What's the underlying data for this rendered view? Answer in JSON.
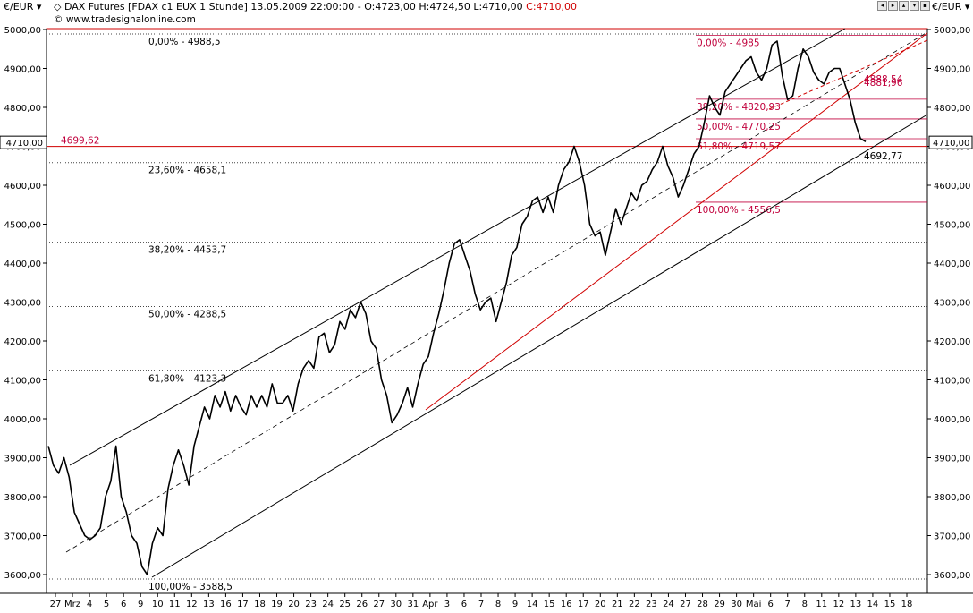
{
  "header": {
    "currency_left": "€/EUR",
    "currency_right": "€/EUR",
    "title": "DAX Futures [FDAX c1 EUX  1 Stunde] 13.05.2009 22:00:00 - O:4723,00 H:4724,50 L:4710,00",
    "close_label": "C:4710,00",
    "site": "www.tradesignalonline.com",
    "controls": [
      "◂",
      "▸",
      "▴",
      "▾",
      "▪"
    ]
  },
  "chart_data": {
    "type": "line",
    "title": "DAX Futures [FDAX c1 EUX  1 Stunde] 13.05.2009 22:00:00",
    "ylim": [
      3560,
      5010
    ],
    "y_ticks": [
      "5000,00",
      "4900,00",
      "4800,00",
      "4700,00",
      "4600,00",
      "4500,00",
      "4400,00",
      "4300,00",
      "4200,00",
      "4100,00",
      "4000,00",
      "3900,00",
      "3800,00",
      "3700,00",
      "3600,00"
    ],
    "x_ticks": [
      "27",
      "Mrz",
      "4",
      "5",
      "6",
      "9",
      "10",
      "11",
      "12",
      "13",
      "16",
      "17",
      "18",
      "19",
      "20",
      "23",
      "24",
      "25",
      "26",
      "27",
      "30",
      "31",
      "Apr",
      "3",
      "6",
      "7",
      "8",
      "9",
      "14",
      "15",
      "16",
      "17",
      "20",
      "21",
      "22",
      "23",
      "24",
      "27",
      "28",
      "29",
      "30",
      "Mai",
      "6",
      "7",
      "8",
      "11",
      "12",
      "13",
      "14",
      "15",
      "18"
    ],
    "last_price_label": "4710,00",
    "hline_label": "4699,62",
    "hline_value": 4699.62,
    "channel_label": "4692,77",
    "fib_left": [
      {
        "label": "0,00% - 4988,5",
        "value": 4988.5
      },
      {
        "label": "23,60% - 4658,1",
        "value": 4658.1
      },
      {
        "label": "38,20% - 4453,7",
        "value": 4453.7
      },
      {
        "label": "50,00% - 4288,5",
        "value": 4288.5
      },
      {
        "label": "61,80% - 4123,3",
        "value": 4123.3
      },
      {
        "label": "100,00% - 3588,5",
        "value": 3588.5
      }
    ],
    "fib_right": [
      {
        "label": "0,00% - 4985",
        "value": 4985
      },
      {
        "label": "38,20% - 4820,93",
        "value": 4820.93
      },
      {
        "label": "50,00% - 4770,25",
        "value": 4770.25
      },
      {
        "label": "61,80% - 4719,57",
        "value": 4719.57
      },
      {
        "label": "100,00% - 4556,5",
        "value": 4556.5
      }
    ],
    "trend_labels": [
      "4888,54",
      "4881,96"
    ],
    "price_path": [
      [
        0,
        3930
      ],
      [
        2,
        3880
      ],
      [
        4,
        3860
      ],
      [
        6,
        3900
      ],
      [
        8,
        3850
      ],
      [
        10,
        3760
      ],
      [
        12,
        3730
      ],
      [
        14,
        3700
      ],
      [
        16,
        3690
      ],
      [
        18,
        3700
      ],
      [
        20,
        3720
      ],
      [
        22,
        3800
      ],
      [
        24,
        3840
      ],
      [
        26,
        3930
      ],
      [
        28,
        3800
      ],
      [
        30,
        3760
      ],
      [
        32,
        3700
      ],
      [
        34,
        3680
      ],
      [
        36,
        3620
      ],
      [
        38,
        3600
      ],
      [
        40,
        3680
      ],
      [
        42,
        3720
      ],
      [
        44,
        3700
      ],
      [
        46,
        3820
      ],
      [
        48,
        3880
      ],
      [
        50,
        3920
      ],
      [
        52,
        3880
      ],
      [
        54,
        3830
      ],
      [
        56,
        3930
      ],
      [
        58,
        3980
      ],
      [
        60,
        4030
      ],
      [
        62,
        4000
      ],
      [
        64,
        4060
      ],
      [
        66,
        4030
      ],
      [
        68,
        4070
      ],
      [
        70,
        4020
      ],
      [
        72,
        4060
      ],
      [
        74,
        4030
      ],
      [
        76,
        4010
      ],
      [
        78,
        4060
      ],
      [
        80,
        4030
      ],
      [
        82,
        4060
      ],
      [
        84,
        4030
      ],
      [
        86,
        4090
      ],
      [
        88,
        4040
      ],
      [
        90,
        4040
      ],
      [
        92,
        4060
      ],
      [
        94,
        4020
      ],
      [
        96,
        4090
      ],
      [
        98,
        4130
      ],
      [
        100,
        4150
      ],
      [
        102,
        4130
      ],
      [
        104,
        4210
      ],
      [
        106,
        4220
      ],
      [
        108,
        4170
      ],
      [
        110,
        4190
      ],
      [
        112,
        4250
      ],
      [
        114,
        4230
      ],
      [
        116,
        4280
      ],
      [
        118,
        4260
      ],
      [
        120,
        4300
      ],
      [
        122,
        4270
      ],
      [
        124,
        4200
      ],
      [
        126,
        4180
      ],
      [
        128,
        4100
      ],
      [
        130,
        4060
      ],
      [
        132,
        3990
      ],
      [
        134,
        4010
      ],
      [
        136,
        4040
      ],
      [
        138,
        4080
      ],
      [
        140,
        4030
      ],
      [
        142,
        4090
      ],
      [
        144,
        4140
      ],
      [
        146,
        4160
      ],
      [
        148,
        4220
      ],
      [
        150,
        4270
      ],
      [
        152,
        4330
      ],
      [
        154,
        4400
      ],
      [
        156,
        4450
      ],
      [
        158,
        4460
      ],
      [
        160,
        4420
      ],
      [
        162,
        4380
      ],
      [
        164,
        4320
      ],
      [
        166,
        4280
      ],
      [
        168,
        4300
      ],
      [
        170,
        4310
      ],
      [
        172,
        4250
      ],
      [
        174,
        4300
      ],
      [
        176,
        4350
      ],
      [
        178,
        4420
      ],
      [
        180,
        4440
      ],
      [
        182,
        4500
      ],
      [
        184,
        4520
      ],
      [
        186,
        4560
      ],
      [
        188,
        4570
      ],
      [
        190,
        4530
      ],
      [
        192,
        4570
      ],
      [
        194,
        4530
      ],
      [
        196,
        4600
      ],
      [
        198,
        4640
      ],
      [
        200,
        4660
      ],
      [
        202,
        4700
      ],
      [
        204,
        4660
      ],
      [
        206,
        4600
      ],
      [
        208,
        4500
      ],
      [
        210,
        4470
      ],
      [
        212,
        4480
      ],
      [
        214,
        4420
      ],
      [
        216,
        4480
      ],
      [
        218,
        4540
      ],
      [
        220,
        4500
      ],
      [
        222,
        4540
      ],
      [
        224,
        4580
      ],
      [
        226,
        4560
      ],
      [
        228,
        4600
      ],
      [
        230,
        4610
      ],
      [
        232,
        4640
      ],
      [
        234,
        4660
      ],
      [
        236,
        4700
      ],
      [
        238,
        4650
      ],
      [
        240,
        4620
      ],
      [
        242,
        4570
      ],
      [
        244,
        4600
      ],
      [
        246,
        4640
      ],
      [
        248,
        4680
      ],
      [
        250,
        4700
      ],
      [
        252,
        4760
      ],
      [
        254,
        4830
      ],
      [
        256,
        4800
      ],
      [
        258,
        4780
      ],
      [
        260,
        4840
      ],
      [
        262,
        4860
      ],
      [
        264,
        4880
      ],
      [
        266,
        4900
      ],
      [
        268,
        4920
      ],
      [
        270,
        4930
      ],
      [
        272,
        4890
      ],
      [
        274,
        4870
      ],
      [
        276,
        4900
      ],
      [
        278,
        4960
      ],
      [
        280,
        4970
      ],
      [
        282,
        4880
      ],
      [
        284,
        4820
      ],
      [
        286,
        4830
      ],
      [
        288,
        4900
      ],
      [
        290,
        4950
      ],
      [
        292,
        4930
      ],
      [
        294,
        4890
      ],
      [
        296,
        4870
      ],
      [
        298,
        4860
      ],
      [
        300,
        4890
      ],
      [
        302,
        4900
      ],
      [
        304,
        4900
      ],
      [
        306,
        4860
      ],
      [
        308,
        4820
      ],
      [
        310,
        4760
      ],
      [
        312,
        4720
      ],
      [
        314,
        4712
      ]
    ],
    "price_path_x_range": [
      0,
      314
    ]
  }
}
